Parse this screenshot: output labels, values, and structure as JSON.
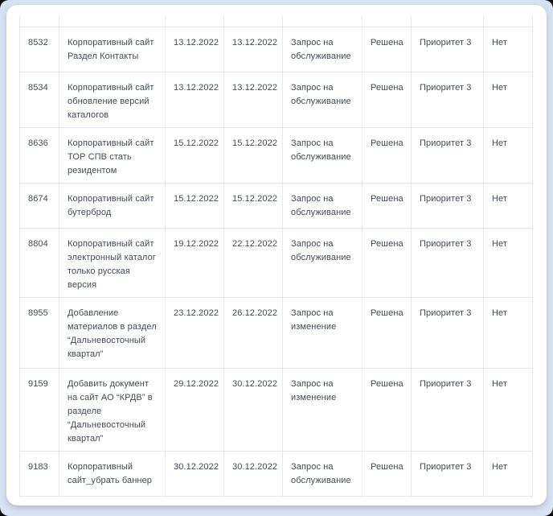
{
  "colors": {
    "page_background": "#d9e2f2",
    "card_background": "#ffffff",
    "table_border": "#e3e8f0",
    "text": "#444b57"
  },
  "table": {
    "rows": [
      {
        "id": "8532",
        "description_lines": [
          "Корпоративный сайт",
          "Раздел Контакты"
        ],
        "date1": "13.12.2022",
        "date2": "13.12.2022",
        "type_lines": [
          "Запрос на",
          "обслуживание"
        ],
        "status": "Решена",
        "priority": "Приоритет 3",
        "flag": "Нет"
      },
      {
        "id": "8534",
        "description_lines": [
          "Корпоративный сайт",
          "обновление версий",
          "каталогов"
        ],
        "date1": "13.12.2022",
        "date2": "13.12.2022",
        "type_lines": [
          "Запрос на",
          "обслуживание"
        ],
        "status": "Решена",
        "priority": "Приоритет 3",
        "flag": "Нет"
      },
      {
        "id": "8636",
        "description_lines": [
          "Корпоративный сайт",
          "ТОР СПВ стать",
          "резидентом"
        ],
        "date1": "15.12.2022",
        "date2": "15.12.2022",
        "type_lines": [
          "Запрос на",
          "обслуживание"
        ],
        "status": "Решена",
        "priority": "Приоритет 3",
        "flag": "Нет"
      },
      {
        "id": "8674",
        "description_lines": [
          "Корпоративный сайт",
          "бутерброд"
        ],
        "date1": "15.12.2022",
        "date2": "15.12.2022",
        "type_lines": [
          "Запрос на",
          "обслуживание"
        ],
        "status": "Решена",
        "priority": "Приоритет 3",
        "flag": "Нет"
      },
      {
        "id": "8804",
        "description_lines": [
          "Корпоративный сайт",
          "электронный каталог",
          "только русская",
          "версия"
        ],
        "date1": "19.12.2022",
        "date2": "22.12.2022",
        "type_lines": [
          "Запрос на",
          "обслуживание"
        ],
        "status": "Решена",
        "priority": "Приоритет 3",
        "flag": "Нет"
      },
      {
        "id": "8955",
        "description_lines": [
          "Добавление",
          "материалов в раздел",
          "“Дальневосточный",
          "квартал”"
        ],
        "date1": "23.12.2022",
        "date2": "26.12.2022",
        "type_lines": [
          "Запрос на",
          "изменение"
        ],
        "status": "Решена",
        "priority": "Приоритет 3",
        "flag": "Нет"
      },
      {
        "id": "9159",
        "description_lines": [
          "Добавить документ",
          "на сайт АО “КРДВ” в",
          "разделе",
          "“Дальневосточный",
          "квартал”"
        ],
        "date1": "29.12.2022",
        "date2": "30.12.2022",
        "type_lines": [
          "Запрос на",
          "изменение"
        ],
        "status": "Решена",
        "priority": "Приоритет 3",
        "flag": "Нет"
      },
      {
        "id": "9183",
        "description_lines": [
          "Корпоративный",
          "сайт_убрать баннер"
        ],
        "date1": "30.12.2022",
        "date2": "30.12.2022",
        "type_lines": [
          "Запрос на",
          "обслуживание"
        ],
        "status": "Решена",
        "priority": "Приоритет 3",
        "flag": "Нет"
      }
    ]
  }
}
